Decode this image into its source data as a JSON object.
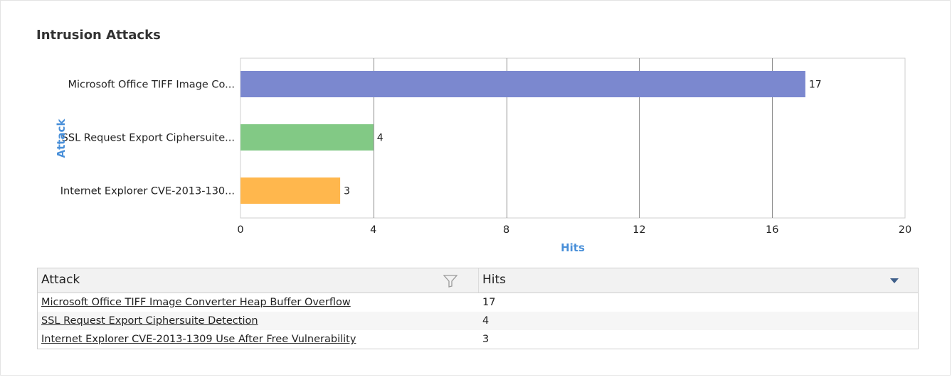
{
  "widget": {
    "title": "Intrusion Attacks"
  },
  "chart_data": {
    "type": "bar",
    "orientation": "horizontal",
    "title": "Intrusion Attacks",
    "xlabel": "Hits",
    "ylabel": "Attack",
    "categories": [
      "Microsoft Office TIFF Image Co...",
      "SSL Request Export Ciphersuite...",
      "Internet Explorer CVE-2013-130..."
    ],
    "values": [
      17,
      4,
      3
    ],
    "colors": [
      "#7b88cf",
      "#82c985",
      "#ffb74d"
    ],
    "xlim": [
      0,
      20
    ],
    "xticks": [
      "0",
      "4",
      "8",
      "12",
      "16",
      "20"
    ],
    "xtick_values": [
      0,
      4,
      8,
      12,
      16,
      20
    ],
    "grid": true,
    "label_color": "#4a90d9"
  },
  "table": {
    "headers": {
      "attack": "Attack",
      "hits": "Hits"
    },
    "rows": [
      {
        "attack": "Microsoft Office TIFF Image Converter Heap Buffer Overflow",
        "hits": "17"
      },
      {
        "attack": "SSL Request Export Ciphersuite Detection",
        "hits": "4"
      },
      {
        "attack": "Internet Explorer CVE-2013-1309 Use After Free Vulnerability",
        "hits": "3"
      }
    ]
  }
}
